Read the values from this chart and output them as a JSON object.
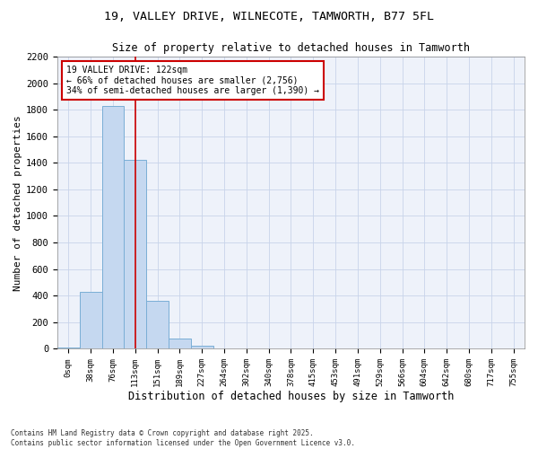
{
  "title1": "19, VALLEY DRIVE, WILNECOTE, TAMWORTH, B77 5FL",
  "title2": "Size of property relative to detached houses in Tamworth",
  "xlabel": "Distribution of detached houses by size in Tamworth",
  "ylabel": "Number of detached properties",
  "bar_labels": [
    "0sqm",
    "38sqm",
    "76sqm",
    "113sqm",
    "151sqm",
    "189sqm",
    "227sqm",
    "264sqm",
    "302sqm",
    "340sqm",
    "378sqm",
    "415sqm",
    "453sqm",
    "491sqm",
    "529sqm",
    "566sqm",
    "604sqm",
    "642sqm",
    "680sqm",
    "717sqm",
    "755sqm"
  ],
  "bar_values": [
    10,
    430,
    1830,
    1420,
    360,
    75,
    25,
    5,
    0,
    0,
    0,
    0,
    0,
    0,
    0,
    0,
    0,
    0,
    0,
    0,
    0
  ],
  "bar_color": "#c5d8f0",
  "bar_edge_color": "#7aaed6",
  "marker_color": "#cc0000",
  "annotation_title": "19 VALLEY DRIVE: 122sqm",
  "annotation_line1": "← 66% of detached houses are smaller (2,756)",
  "annotation_line2": "34% of semi-detached houses are larger (1,390) →",
  "annotation_box_color": "#cc0000",
  "ylim": [
    0,
    2200
  ],
  "yticks": [
    0,
    200,
    400,
    600,
    800,
    1000,
    1200,
    1400,
    1600,
    1800,
    2000,
    2200
  ],
  "footer1": "Contains HM Land Registry data © Crown copyright and database right 2025.",
  "footer2": "Contains public sector information licensed under the Open Government Licence v3.0.",
  "bg_color": "#eef2fa",
  "grid_color": "#c8d4ea"
}
